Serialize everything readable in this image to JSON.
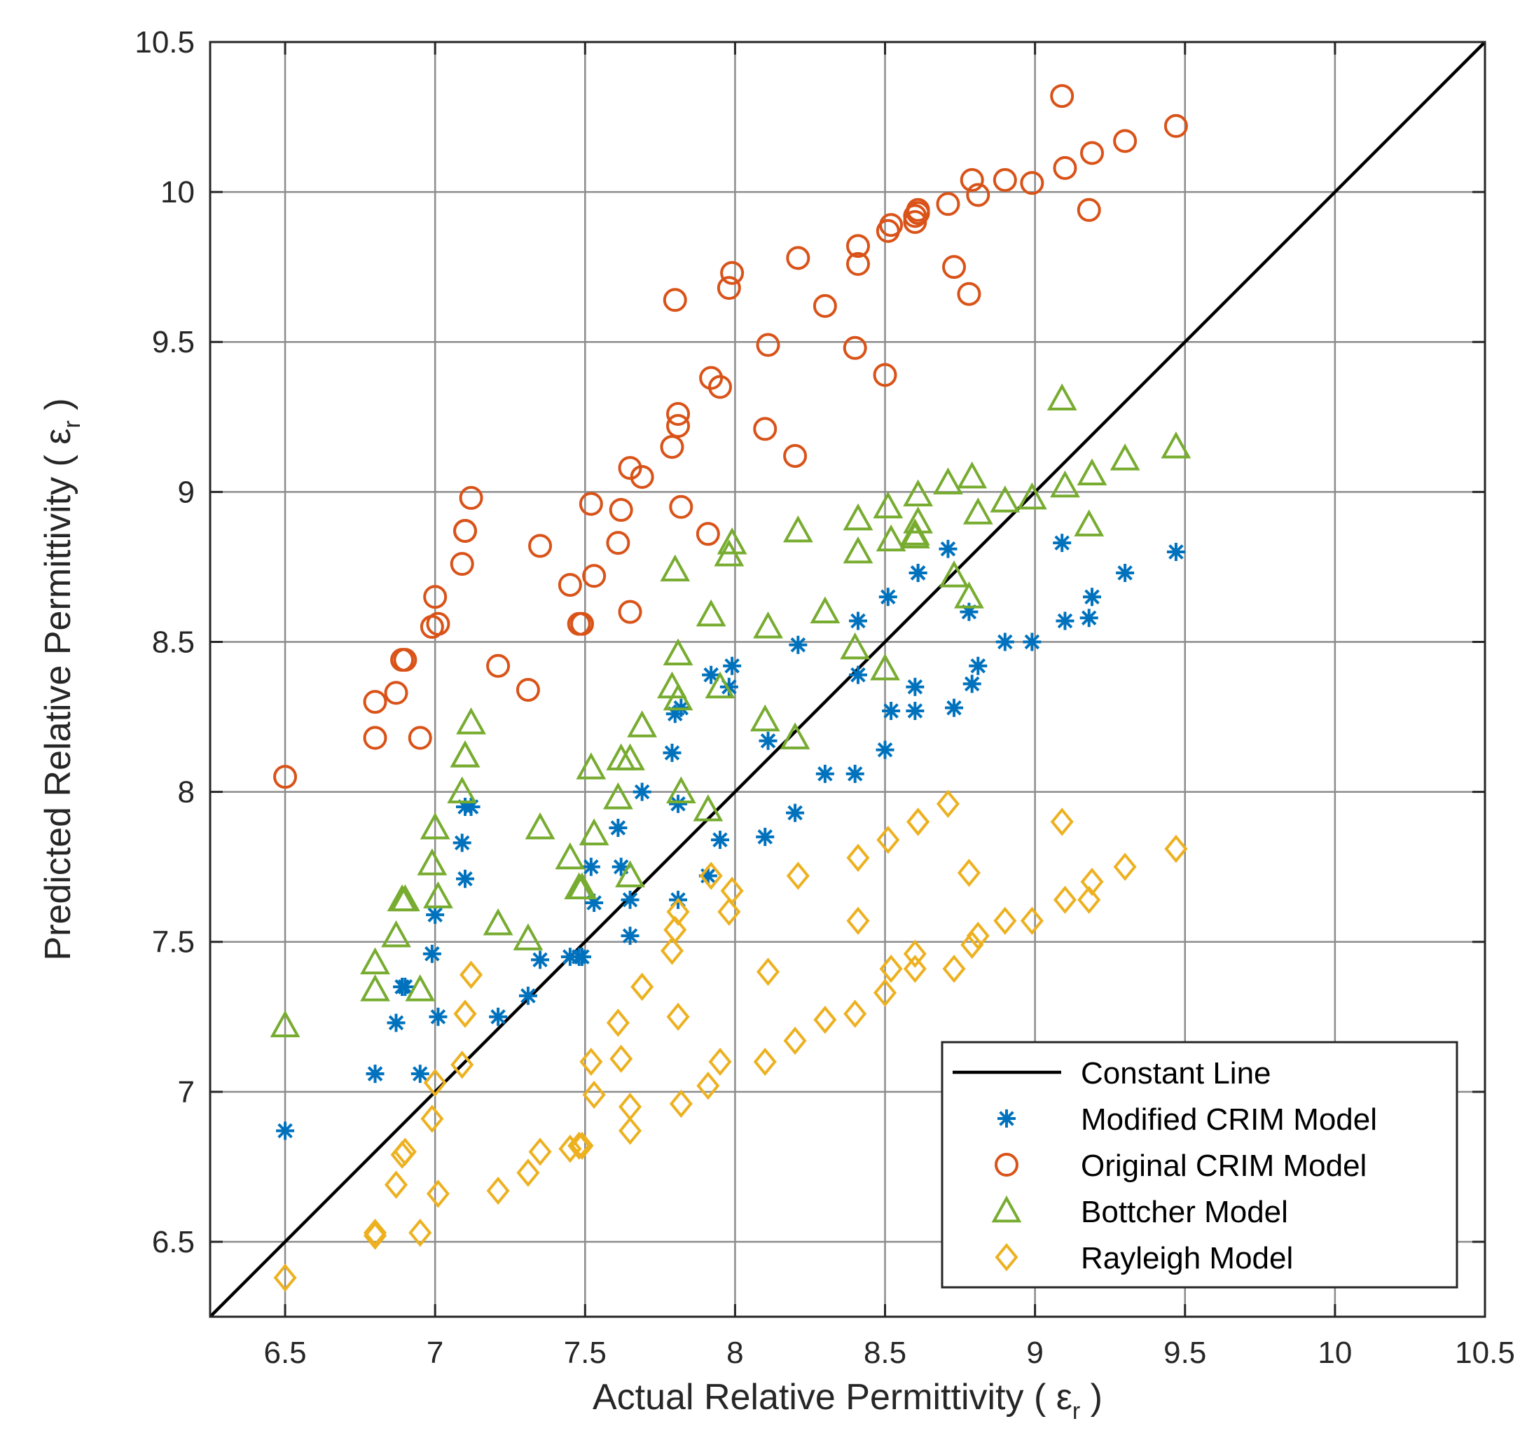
{
  "chart_data": {
    "type": "scatter",
    "title": "",
    "xlabel": {
      "text": "Actual Relative Permittivity ( ",
      "symbol": "ε",
      "sub": "r",
      "close": " )"
    },
    "ylabel": {
      "text": "Predicted Relative Permittivity ( ",
      "symbol": "ε",
      "sub": "r",
      "close": " )"
    },
    "xlim": [
      6.25,
      10.5
    ],
    "ylim": [
      6.25,
      10.5
    ],
    "xticks": [
      "6.5",
      "7",
      "7.5",
      "8",
      "8.5",
      "9",
      "9.5",
      "10",
      "10.5"
    ],
    "yticks": [
      "6.5",
      "7",
      "7.5",
      "8",
      "8.5",
      "9",
      "9.5",
      "10",
      "10.5"
    ],
    "grid": true,
    "legend_position": "bottom-right",
    "colors": {
      "line": "#000000",
      "modified_crim": "#0072BD",
      "original_crim": "#D95319",
      "bottcher": "#77AC30",
      "rayleigh": "#EDB120",
      "grid": "#8c8c8c"
    },
    "x": [
      6.5,
      6.8,
      6.8,
      6.87,
      6.89,
      6.9,
      6.95,
      6.99,
      7.0,
      7.01,
      7.09,
      7.1,
      7.1,
      7.12,
      7.21,
      7.31,
      7.35,
      7.45,
      7.48,
      7.49,
      7.52,
      7.53,
      7.61,
      7.62,
      7.65,
      7.65,
      7.69,
      7.79,
      7.8,
      7.81,
      7.81,
      7.82,
      7.91,
      7.92,
      7.95,
      7.98,
      7.99,
      8.1,
      8.11,
      8.2,
      8.21,
      8.3,
      8.4,
      8.41,
      8.41,
      8.5,
      8.51,
      8.52,
      8.6,
      8.6,
      8.61,
      8.61,
      8.71,
      8.73,
      8.78,
      8.79,
      8.81,
      8.9,
      8.99,
      9.09,
      9.1,
      9.18,
      9.19,
      9.3,
      9.47
    ],
    "series": [
      {
        "name": "Constant Line",
        "type": "line",
        "x": [
          6.25,
          10.5
        ],
        "y": [
          6.25,
          10.5
        ]
      },
      {
        "name": "Modified CRIM Model",
        "marker": "asterisk",
        "y": [
          6.87,
          7.06,
          7.06,
          7.23,
          7.35,
          7.35,
          7.06,
          7.46,
          7.59,
          7.25,
          7.83,
          7.71,
          7.95,
          7.95,
          7.25,
          7.32,
          7.44,
          7.45,
          7.45,
          7.45,
          7.75,
          7.63,
          7.88,
          7.75,
          7.52,
          7.64,
          8.0,
          8.13,
          8.26,
          7.96,
          7.64,
          8.28,
          7.72,
          8.39,
          7.84,
          8.35,
          8.42,
          7.85,
          8.17,
          7.93,
          8.49,
          8.06,
          8.06,
          8.39,
          8.57,
          8.14,
          8.65,
          8.27,
          8.27,
          8.35,
          8.73,
          8.73,
          8.81,
          8.28,
          8.6,
          8.36,
          8.42,
          8.5,
          8.5,
          8.83,
          8.57,
          8.58,
          8.65,
          8.73,
          8.8
        ]
      },
      {
        "name": "Original CRIM Model",
        "marker": "circle",
        "y": [
          8.05,
          8.18,
          8.3,
          8.33,
          8.44,
          8.44,
          8.18,
          8.55,
          8.65,
          8.56,
          8.76,
          8.87,
          8.87,
          8.98,
          8.42,
          8.34,
          8.82,
          8.69,
          8.56,
          8.56,
          8.96,
          8.72,
          8.83,
          8.94,
          8.6,
          9.08,
          9.05,
          9.15,
          9.64,
          9.26,
          9.22,
          8.95,
          8.86,
          9.38,
          9.35,
          9.68,
          9.73,
          9.21,
          9.49,
          9.12,
          9.78,
          9.62,
          9.48,
          9.76,
          9.82,
          9.39,
          9.87,
          9.89,
          9.9,
          9.92,
          9.93,
          9.94,
          9.96,
          9.75,
          9.66,
          10.04,
          9.99,
          10.04,
          10.03,
          10.32,
          10.08,
          9.94,
          10.13,
          10.17,
          10.22
        ]
      },
      {
        "name": "Bottcher Model",
        "marker": "triangle",
        "y": [
          7.22,
          7.34,
          7.43,
          7.52,
          7.64,
          7.64,
          7.34,
          7.76,
          7.88,
          7.65,
          8.0,
          8.12,
          8.12,
          8.23,
          7.56,
          7.51,
          7.88,
          7.78,
          7.68,
          7.68,
          8.08,
          7.86,
          7.98,
          8.11,
          7.72,
          8.11,
          8.22,
          8.35,
          8.74,
          8.46,
          8.31,
          8.0,
          7.94,
          8.59,
          8.35,
          8.79,
          8.83,
          8.24,
          8.55,
          8.18,
          8.87,
          8.6,
          8.48,
          8.8,
          8.91,
          8.41,
          8.95,
          8.84,
          8.85,
          8.86,
          8.9,
          8.99,
          9.03,
          8.72,
          8.65,
          9.05,
          8.93,
          8.97,
          8.98,
          9.31,
          9.02,
          8.89,
          9.06,
          9.11,
          9.15
        ]
      },
      {
        "name": "Rayleigh Model",
        "marker": "diamond",
        "y": [
          6.38,
          6.52,
          6.53,
          6.69,
          6.79,
          6.8,
          6.53,
          6.91,
          7.03,
          6.66,
          7.09,
          7.26,
          7.26,
          7.39,
          6.67,
          6.73,
          6.8,
          6.81,
          6.82,
          6.82,
          7.1,
          6.99,
          7.23,
          7.11,
          6.87,
          6.95,
          7.35,
          7.47,
          7.54,
          7.6,
          7.25,
          6.96,
          7.02,
          7.72,
          7.1,
          7.6,
          7.67,
          7.1,
          7.4,
          7.17,
          7.72,
          7.24,
          7.26,
          7.57,
          7.78,
          7.33,
          7.84,
          7.41,
          7.41,
          7.46,
          7.9,
          7.9,
          7.96,
          7.41,
          7.73,
          7.49,
          7.52,
          7.57,
          7.57,
          7.9,
          7.64,
          7.64,
          7.7,
          7.75,
          7.81
        ]
      }
    ]
  }
}
